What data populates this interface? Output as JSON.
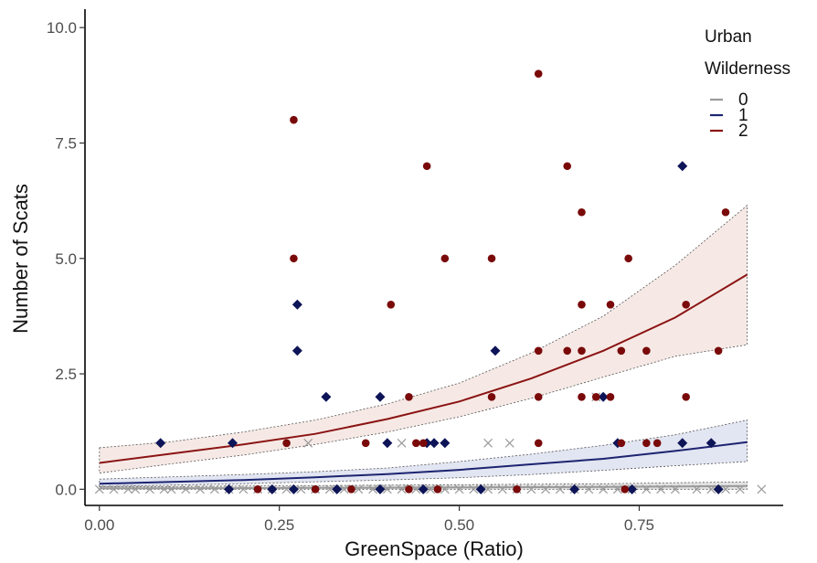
{
  "chart_data": {
    "type": "scatter",
    "title": "",
    "xlabel": "GreenSpace (Ratio)",
    "ylabel": "Number of Scats",
    "xlim": [
      -0.02,
      0.95
    ],
    "ylim": [
      -0.35,
      10.4
    ],
    "x_ticks": [
      0.0,
      0.25,
      0.5,
      0.75
    ],
    "x_tick_labels": [
      "0.00",
      "0.25",
      "0.50",
      "0.75"
    ],
    "y_ticks": [
      0.0,
      2.5,
      5.0,
      7.5,
      10.0
    ],
    "y_tick_labels": [
      "0.0",
      "2.5",
      "5.0",
      "7.5",
      "10.0"
    ],
    "grid": false,
    "legend": {
      "title_lines": [
        "Urban",
        "Wilderness"
      ],
      "position": "top-right",
      "entries": [
        "0",
        "1",
        "2"
      ]
    },
    "series": [
      {
        "name": "0",
        "color": "#9a9a9a",
        "marker": "x",
        "points": [
          [
            0.0,
            0
          ],
          [
            0.02,
            0
          ],
          [
            0.04,
            0
          ],
          [
            0.05,
            0
          ],
          [
            0.07,
            0
          ],
          [
            0.09,
            0
          ],
          [
            0.1,
            0
          ],
          [
            0.12,
            0
          ],
          [
            0.14,
            0
          ],
          [
            0.16,
            0
          ],
          [
            0.18,
            0
          ],
          [
            0.2,
            0
          ],
          [
            0.22,
            0
          ],
          [
            0.24,
            0
          ],
          [
            0.26,
            0
          ],
          [
            0.28,
            0
          ],
          [
            0.3,
            0
          ],
          [
            0.32,
            0
          ],
          [
            0.34,
            0
          ],
          [
            0.36,
            0
          ],
          [
            0.38,
            0
          ],
          [
            0.4,
            0
          ],
          [
            0.42,
            0
          ],
          [
            0.44,
            0
          ],
          [
            0.46,
            0
          ],
          [
            0.48,
            0
          ],
          [
            0.5,
            0
          ],
          [
            0.52,
            0
          ],
          [
            0.54,
            0
          ],
          [
            0.56,
            0
          ],
          [
            0.58,
            0
          ],
          [
            0.6,
            0
          ],
          [
            0.62,
            0
          ],
          [
            0.64,
            0
          ],
          [
            0.66,
            0
          ],
          [
            0.68,
            0
          ],
          [
            0.7,
            0
          ],
          [
            0.72,
            0
          ],
          [
            0.74,
            0
          ],
          [
            0.76,
            0
          ],
          [
            0.78,
            0
          ],
          [
            0.8,
            0
          ],
          [
            0.83,
            0
          ],
          [
            0.85,
            0
          ],
          [
            0.87,
            0
          ],
          [
            0.89,
            0
          ],
          [
            0.92,
            0
          ],
          [
            0.29,
            1
          ],
          [
            0.42,
            1
          ],
          [
            0.54,
            1
          ],
          [
            0.57,
            1
          ],
          [
            0.69,
            2
          ]
        ]
      },
      {
        "name": "1",
        "color": "#0d1457",
        "marker": "diamond",
        "points": [
          [
            0.085,
            1
          ],
          [
            0.185,
            1
          ],
          [
            0.275,
            4
          ],
          [
            0.275,
            3
          ],
          [
            0.315,
            2
          ],
          [
            0.39,
            2
          ],
          [
            0.4,
            1
          ],
          [
            0.455,
            1
          ],
          [
            0.465,
            1
          ],
          [
            0.48,
            1
          ],
          [
            0.55,
            3
          ],
          [
            0.7,
            2
          ],
          [
            0.72,
            1
          ],
          [
            0.81,
            7
          ],
          [
            0.81,
            1
          ],
          [
            0.85,
            1
          ],
          [
            0.18,
            0
          ],
          [
            0.24,
            0
          ],
          [
            0.27,
            0
          ],
          [
            0.33,
            0
          ],
          [
            0.39,
            0
          ],
          [
            0.45,
            0
          ],
          [
            0.53,
            0
          ],
          [
            0.66,
            0
          ],
          [
            0.74,
            0
          ],
          [
            0.86,
            0
          ]
        ]
      },
      {
        "name": "2",
        "color": "#7a0a0a",
        "marker": "circle",
        "points": [
          [
            0.27,
            8
          ],
          [
            0.27,
            5
          ],
          [
            0.26,
            1
          ],
          [
            0.37,
            1
          ],
          [
            0.405,
            4
          ],
          [
            0.43,
            2
          ],
          [
            0.44,
            1
          ],
          [
            0.45,
            1
          ],
          [
            0.455,
            7
          ],
          [
            0.48,
            5
          ],
          [
            0.545,
            2
          ],
          [
            0.545,
            5
          ],
          [
            0.61,
            9
          ],
          [
            0.61,
            3
          ],
          [
            0.61,
            2
          ],
          [
            0.61,
            1
          ],
          [
            0.65,
            7
          ],
          [
            0.65,
            3
          ],
          [
            0.67,
            6
          ],
          [
            0.67,
            4
          ],
          [
            0.67,
            3
          ],
          [
            0.67,
            2
          ],
          [
            0.69,
            2
          ],
          [
            0.71,
            4
          ],
          [
            0.71,
            2
          ],
          [
            0.725,
            3
          ],
          [
            0.725,
            1
          ],
          [
            0.735,
            5
          ],
          [
            0.76,
            3
          ],
          [
            0.76,
            1
          ],
          [
            0.775,
            1
          ],
          [
            0.815,
            4
          ],
          [
            0.815,
            2
          ],
          [
            0.86,
            3
          ],
          [
            0.87,
            6
          ],
          [
            0.22,
            0
          ],
          [
            0.3,
            0
          ],
          [
            0.35,
            0
          ],
          [
            0.43,
            0
          ],
          [
            0.47,
            0
          ],
          [
            0.58,
            0
          ],
          [
            0.73,
            0
          ]
        ]
      }
    ],
    "fits": [
      {
        "name": "0",
        "color": "#9a9a9a",
        "band_fill": "#d9d9d9",
        "x": [
          0.0,
          0.1,
          0.2,
          0.3,
          0.4,
          0.5,
          0.6,
          0.7,
          0.8,
          0.9
        ],
        "y": [
          0.02,
          0.02,
          0.025,
          0.03,
          0.035,
          0.04,
          0.045,
          0.05,
          0.06,
          0.07
        ],
        "lower": [
          0.0,
          0.0,
          0.0,
          0.0,
          0.0,
          0.0,
          0.0,
          0.0,
          0.0,
          0.0
        ],
        "upper": [
          0.06,
          0.06,
          0.07,
          0.08,
          0.09,
          0.1,
          0.11,
          0.12,
          0.14,
          0.16
        ]
      },
      {
        "name": "1",
        "color": "#1c2470",
        "band_fill": "#d8dcee",
        "x": [
          0.0,
          0.1,
          0.2,
          0.3,
          0.4,
          0.5,
          0.6,
          0.7,
          0.8,
          0.9
        ],
        "y": [
          0.12,
          0.16,
          0.2,
          0.26,
          0.33,
          0.42,
          0.54,
          0.66,
          0.83,
          1.02
        ],
        "lower": [
          0.06,
          0.09,
          0.12,
          0.16,
          0.2,
          0.25,
          0.32,
          0.41,
          0.51,
          0.6
        ],
        "upper": [
          0.22,
          0.27,
          0.32,
          0.38,
          0.46,
          0.6,
          0.76,
          0.95,
          1.18,
          1.5
        ]
      },
      {
        "name": "2",
        "color": "#8b1414",
        "band_fill": "#f3e1dc",
        "x": [
          0.0,
          0.1,
          0.2,
          0.3,
          0.4,
          0.5,
          0.6,
          0.7,
          0.8,
          0.9
        ],
        "y": [
          0.57,
          0.77,
          0.97,
          1.2,
          1.52,
          1.9,
          2.4,
          3.0,
          3.72,
          4.65
        ],
        "lower": [
          0.35,
          0.55,
          0.74,
          0.97,
          1.24,
          1.57,
          1.97,
          2.43,
          2.88,
          3.13
        ],
        "upper": [
          0.9,
          1.03,
          1.24,
          1.5,
          1.85,
          2.3,
          2.95,
          3.75,
          4.85,
          6.15
        ]
      }
    ]
  }
}
